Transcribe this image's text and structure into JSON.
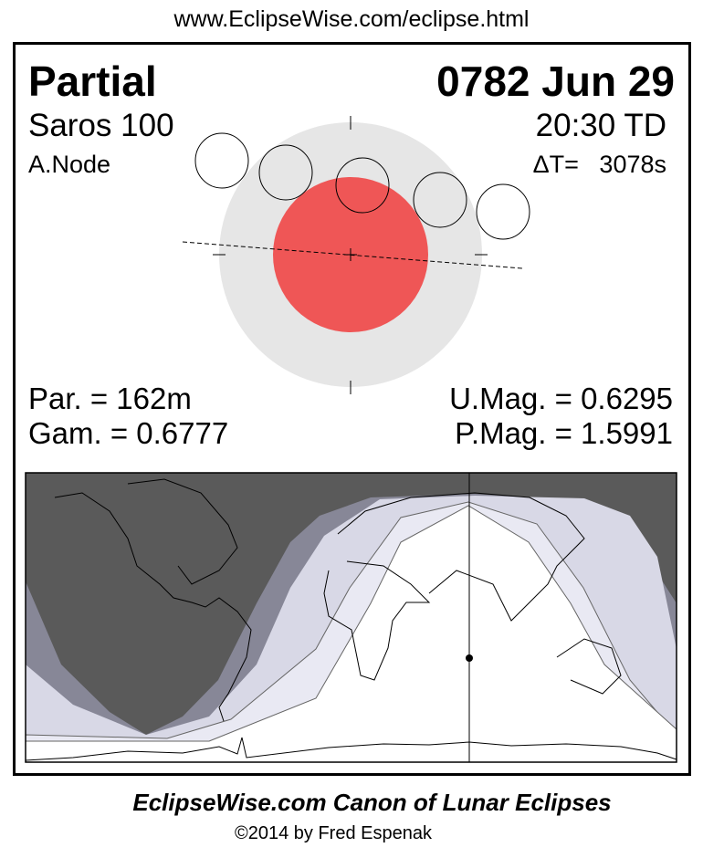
{
  "header": {
    "url": "www.EclipseWise.com/eclipse.html"
  },
  "eclipse": {
    "type": "Partial",
    "date": "0782 Jun 29",
    "saros": "Saros 100",
    "time": "20:30 TD",
    "node": "A.Node",
    "delta_t": "ΔT=   3078s",
    "duration": "Par. = 162m",
    "gamma": "Gam. = 0.6777",
    "umbral_mag": "U.Mag. = 0.6295",
    "penumbral_mag": "P.Mag. = 1.5991"
  },
  "colors": {
    "umbra": "#ef5656",
    "penumbra": "#e6e6e6",
    "night": "#5a5a5a",
    "penumbral_band": "#878797",
    "partial_band": "#d8d8e6",
    "light_band": "#e9e9f3"
  },
  "footer": {
    "title": "EclipseWise.com Canon of Lunar Eclipses",
    "copyright": "©2014 by Fred Espenak"
  }
}
